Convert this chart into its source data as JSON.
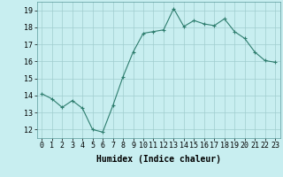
{
  "x": [
    0,
    1,
    2,
    3,
    4,
    5,
    6,
    7,
    8,
    9,
    10,
    11,
    12,
    13,
    14,
    15,
    16,
    17,
    18,
    19,
    20,
    21,
    22,
    23
  ],
  "y": [
    14.1,
    13.8,
    13.3,
    13.7,
    13.25,
    12.0,
    11.85,
    13.4,
    15.1,
    16.55,
    17.65,
    17.75,
    17.85,
    19.1,
    18.05,
    18.4,
    18.2,
    18.1,
    18.5,
    17.75,
    17.35,
    16.55,
    16.05,
    15.95
  ],
  "xlim": [
    -0.5,
    23.5
  ],
  "ylim": [
    11.5,
    19.5
  ],
  "yticks": [
    12,
    13,
    14,
    15,
    16,
    17,
    18,
    19
  ],
  "xticks": [
    0,
    1,
    2,
    3,
    4,
    5,
    6,
    7,
    8,
    9,
    10,
    11,
    12,
    13,
    14,
    15,
    16,
    17,
    18,
    19,
    20,
    21,
    22,
    23
  ],
  "xlabel": "Humidex (Indice chaleur)",
  "line_color": "#2e7d6e",
  "marker": "+",
  "marker_size": 3,
  "bg_color": "#c8eef0",
  "grid_color": "#a0cece",
  "tick_fontsize": 6,
  "xlabel_fontsize": 7,
  "xlabel_fontweight": "bold"
}
